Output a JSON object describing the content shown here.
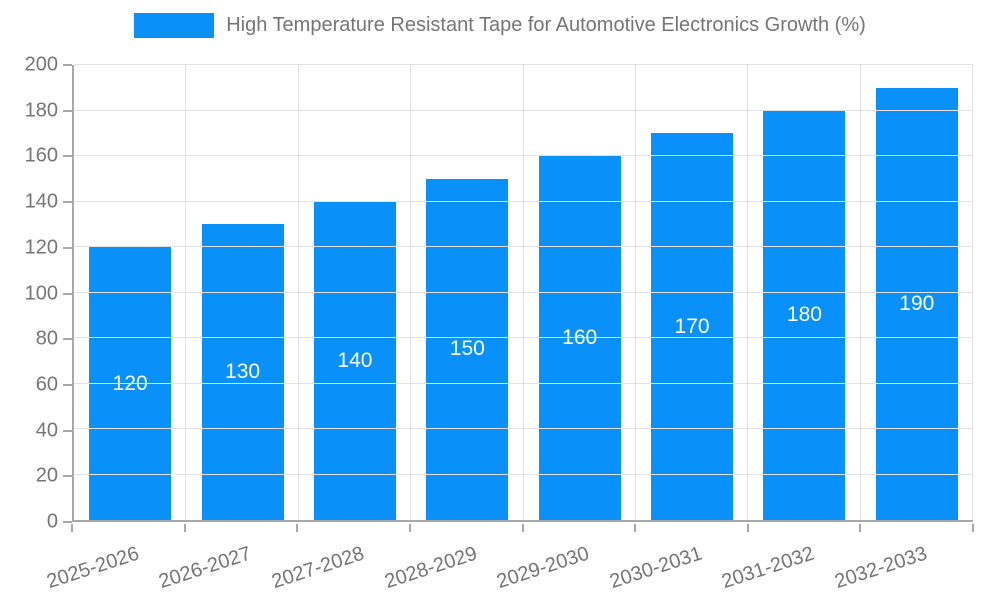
{
  "legend": {
    "label": "High Temperature Resistant Tape for Automotive Electronics Growth (%)"
  },
  "colors": {
    "bar": "#0991f9",
    "axis_line": "#a8a8a8",
    "gridline": "#e2e2e2",
    "axis_text": "#757575",
    "bar_label_text": "#ffffff",
    "background": "#ffffff"
  },
  "chart_data": {
    "type": "bar",
    "title": "High Temperature Resistant Tape for Automotive Electronics Growth (%)",
    "categories": [
      "2025-2026",
      "2026-2027",
      "2027-2028",
      "2028-2029",
      "2029-2030",
      "2030-2031",
      "2031-2032",
      "2032-2033"
    ],
    "values": [
      120,
      130,
      140,
      150,
      160,
      170,
      180,
      190
    ],
    "xlabel": "",
    "ylabel": "",
    "ylim": [
      0,
      200
    ],
    "ytick_step": 20,
    "ytick_labels": [
      "0",
      "20",
      "40",
      "60",
      "80",
      "100",
      "120",
      "140",
      "160",
      "180",
      "200"
    ],
    "grid": true,
    "legend_position": "top-center",
    "bar_label_position": "inside-center",
    "xlabel_rotation_deg": -18
  }
}
